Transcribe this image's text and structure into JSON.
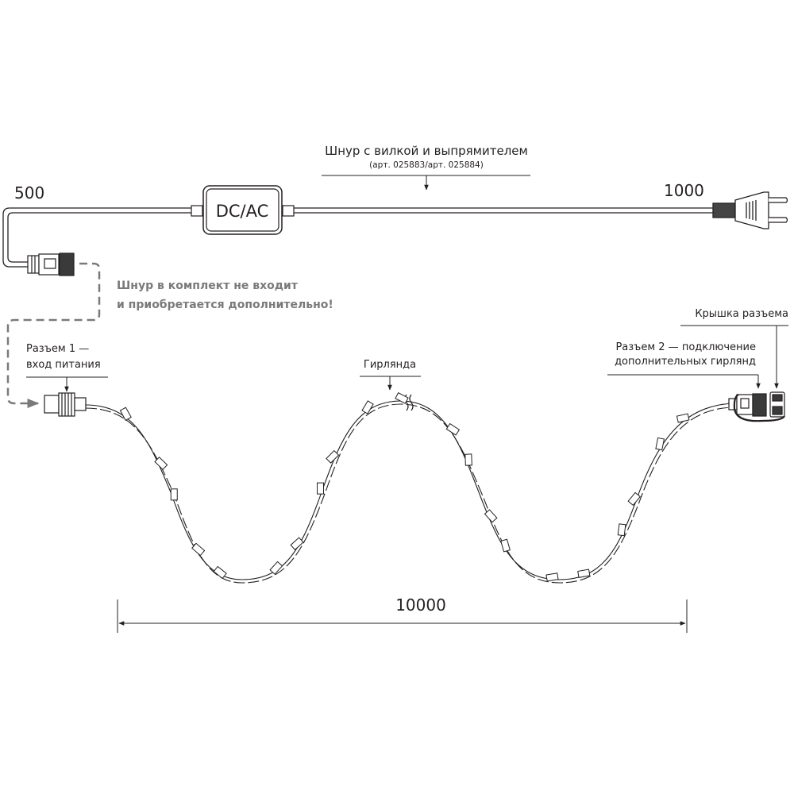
{
  "cord": {
    "title": "Шнур с вилкой и выпрямителем",
    "article": "(арт. 025883/арт. 025884)",
    "adapter_label": "DC/AC",
    "length_left": "500",
    "length_right": "1000"
  },
  "note": {
    "line1": "Шнур в комплект не входит",
    "line2": "и приобретается дополнительно!",
    "color": "#7a7a7a"
  },
  "connector1": {
    "line1": "Разъем 1 —",
    "line2": "вход питания"
  },
  "garland": {
    "label": "Гирлянда"
  },
  "connector2": {
    "cap_label": "Крышка разъема",
    "line1": "Разъем 2 — подключение",
    "line2": "дополнительных гирлянд"
  },
  "dimension": {
    "total_length": "10000"
  },
  "colors": {
    "line": "#231f20",
    "dashed": "#7a7a7a"
  }
}
